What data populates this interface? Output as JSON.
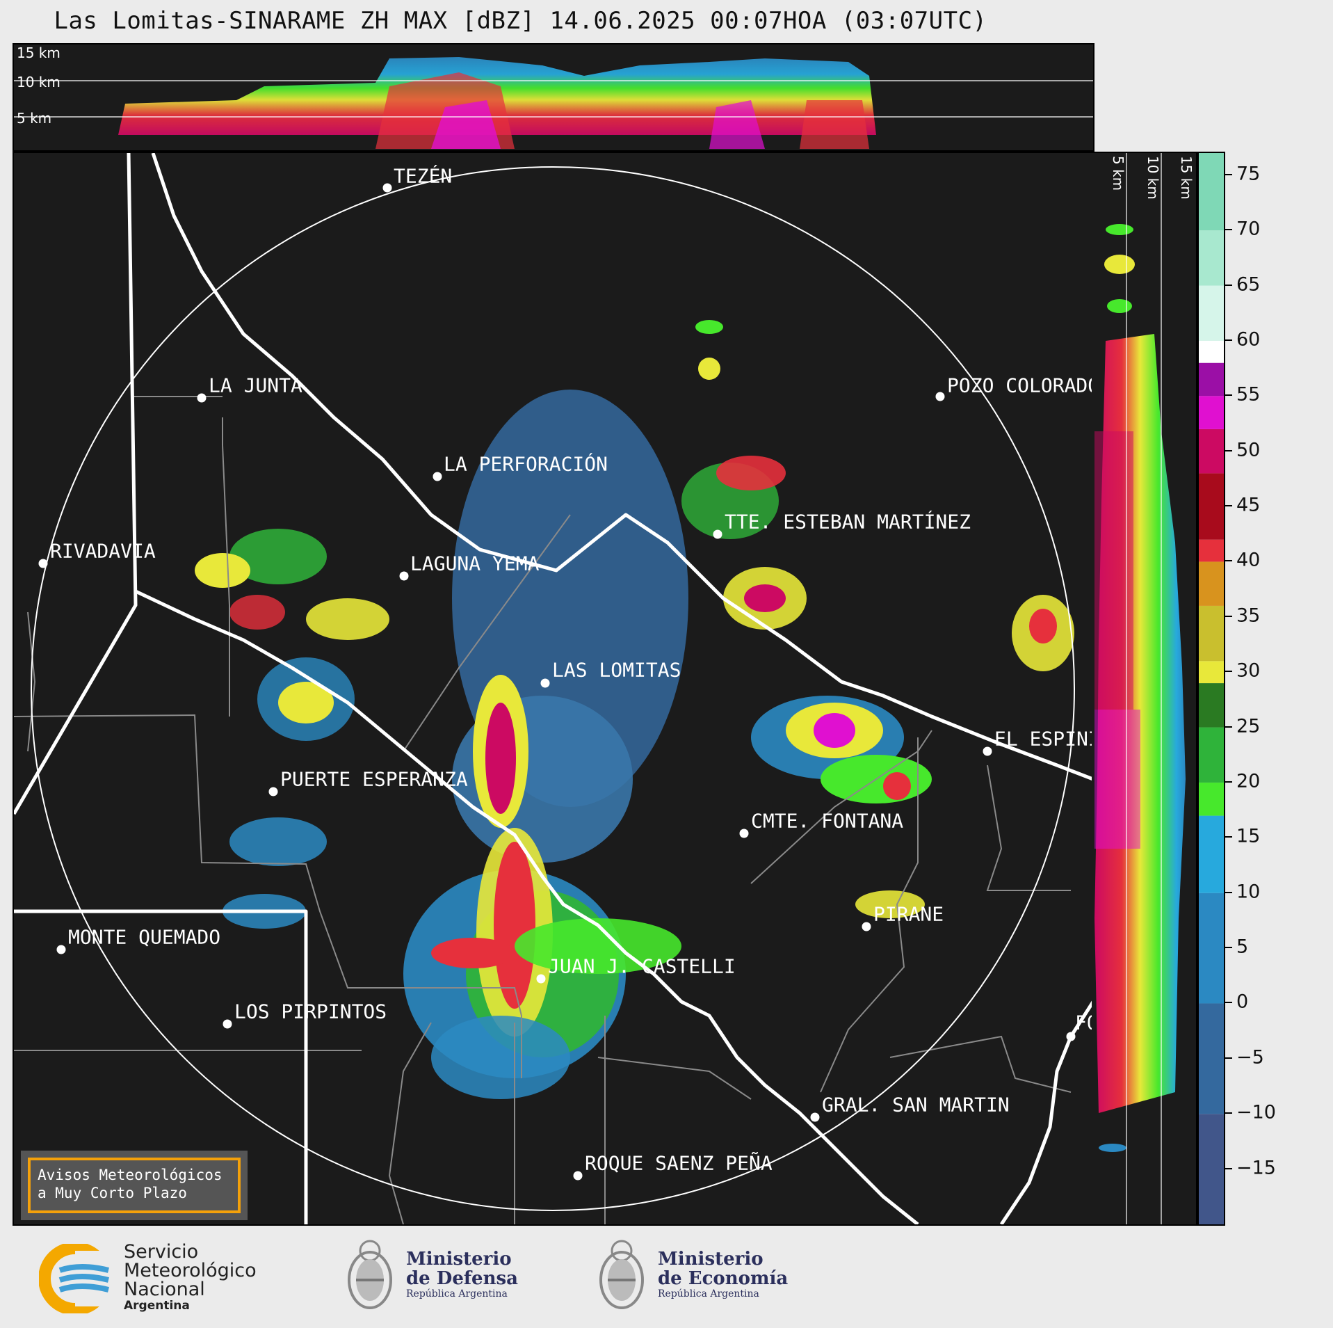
{
  "title": "Las Lomitas-SINARAME ZH MAX [dBZ] 14.06.2025 00:07HOA (03:07UTC)",
  "top_strip": {
    "height_labels": [
      "15 km",
      "10 km",
      "5 km"
    ]
  },
  "side_strip": {
    "height_labels": [
      "5 km",
      "10 km",
      "15 km"
    ]
  },
  "colorbar": {
    "units": "dBZ",
    "ticks": [
      "75",
      "70",
      "65",
      "60",
      "55",
      "50",
      "45",
      "40",
      "35",
      "30",
      "25",
      "20",
      "15",
      "10",
      "5",
      "0",
      "−5",
      "−10",
      "−15"
    ],
    "colors": {
      "-20": "#3a3f6a",
      "-10": "#41568a",
      "0": "#34699e",
      "10": "#2b89c2",
      "17": "#27a9dd",
      "20": "#47e82c",
      "25": "#2fb33a",
      "29": "#2a7a22",
      "31": "#e8e83a",
      "36": "#c9bf2e",
      "40": "#d8931e",
      "42": "#e6303c",
      "48": "#a80b1c",
      "52": "#cc0a62",
      "55": "#e010d0",
      "58": "#9b0fa6",
      "60": "#ffffff",
      "65": "#d6f5ea",
      "70": "#a8e8cf",
      "77": "#7fd8b6"
    }
  },
  "cities": [
    {
      "name": "TEZÉN"
    },
    {
      "name": "LA JUNTA"
    },
    {
      "name": "POZO COLORADO"
    },
    {
      "name": "LA PERFORACIÓN"
    },
    {
      "name": "TTE. ESTEBAN MARTÍNEZ"
    },
    {
      "name": "RIVADAVIA"
    },
    {
      "name": "LAGUNA YEMA"
    },
    {
      "name": "LAS LOMITAS"
    },
    {
      "name": "EL ESPINILLO"
    },
    {
      "name": "PUERTE ESPERANZA"
    },
    {
      "name": "CMTE. FONTANA"
    },
    {
      "name": "PIRANE"
    },
    {
      "name": "MONTE QUEMADO"
    },
    {
      "name": "JUAN J. CASTELLI"
    },
    {
      "name": "LOS PIRPINTOS"
    },
    {
      "name": "GRAL. SAN MARTIN"
    },
    {
      "name": "ROQUE SAENZ PEÑA"
    },
    {
      "name": "FORMOSA"
    }
  ],
  "alerts_box": {
    "line1": "Avisos Meteorológicos",
    "line2": "a Muy Corto Plazo"
  },
  "logos": {
    "smn": [
      "Servicio",
      "Meteorológico",
      "Nacional",
      "Argentina"
    ],
    "defensa": [
      "Ministerio",
      "de Defensa",
      "República Argentina"
    ],
    "economia": [
      "Ministerio",
      "de Economía",
      "República Argentina"
    ]
  }
}
